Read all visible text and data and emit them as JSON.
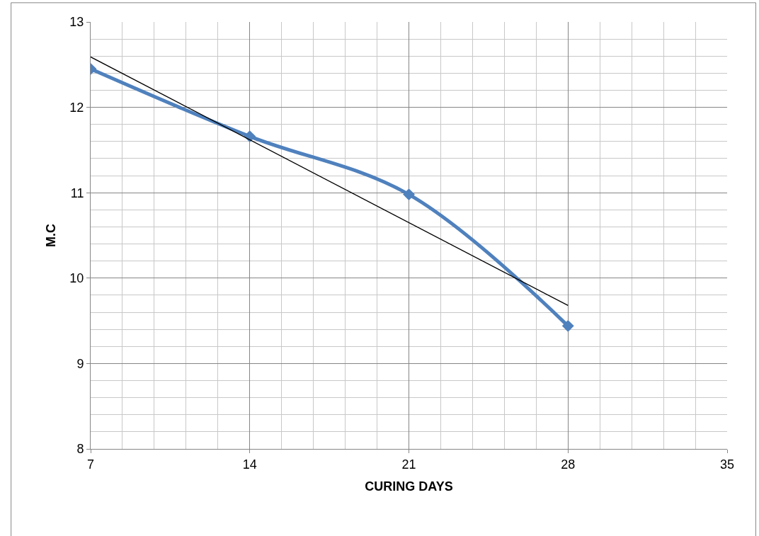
{
  "chart_data": {
    "type": "line",
    "xlabel": "CURING DAYS",
    "ylabel": "M.C",
    "x": [
      7,
      14,
      21,
      28
    ],
    "series": [
      {
        "color": "#4f81bd",
        "values": [
          12.45,
          11.66,
          10.98,
          9.44
        ],
        "marker": "diamond",
        "line_style": "solid"
      },
      {
        "type": "line",
        "color": "#000000",
        "x": [
          7,
          28
        ],
        "values": [
          12.59,
          9.68
        ],
        "marker": "none",
        "line_style": "solid"
      }
    ],
    "xlim": [
      7,
      35
    ],
    "xticks": [
      7,
      14,
      21,
      28,
      35
    ],
    "ylim": [
      8,
      13
    ],
    "yticks": [
      8,
      9,
      10,
      11,
      12,
      13
    ],
    "grid": true
  }
}
